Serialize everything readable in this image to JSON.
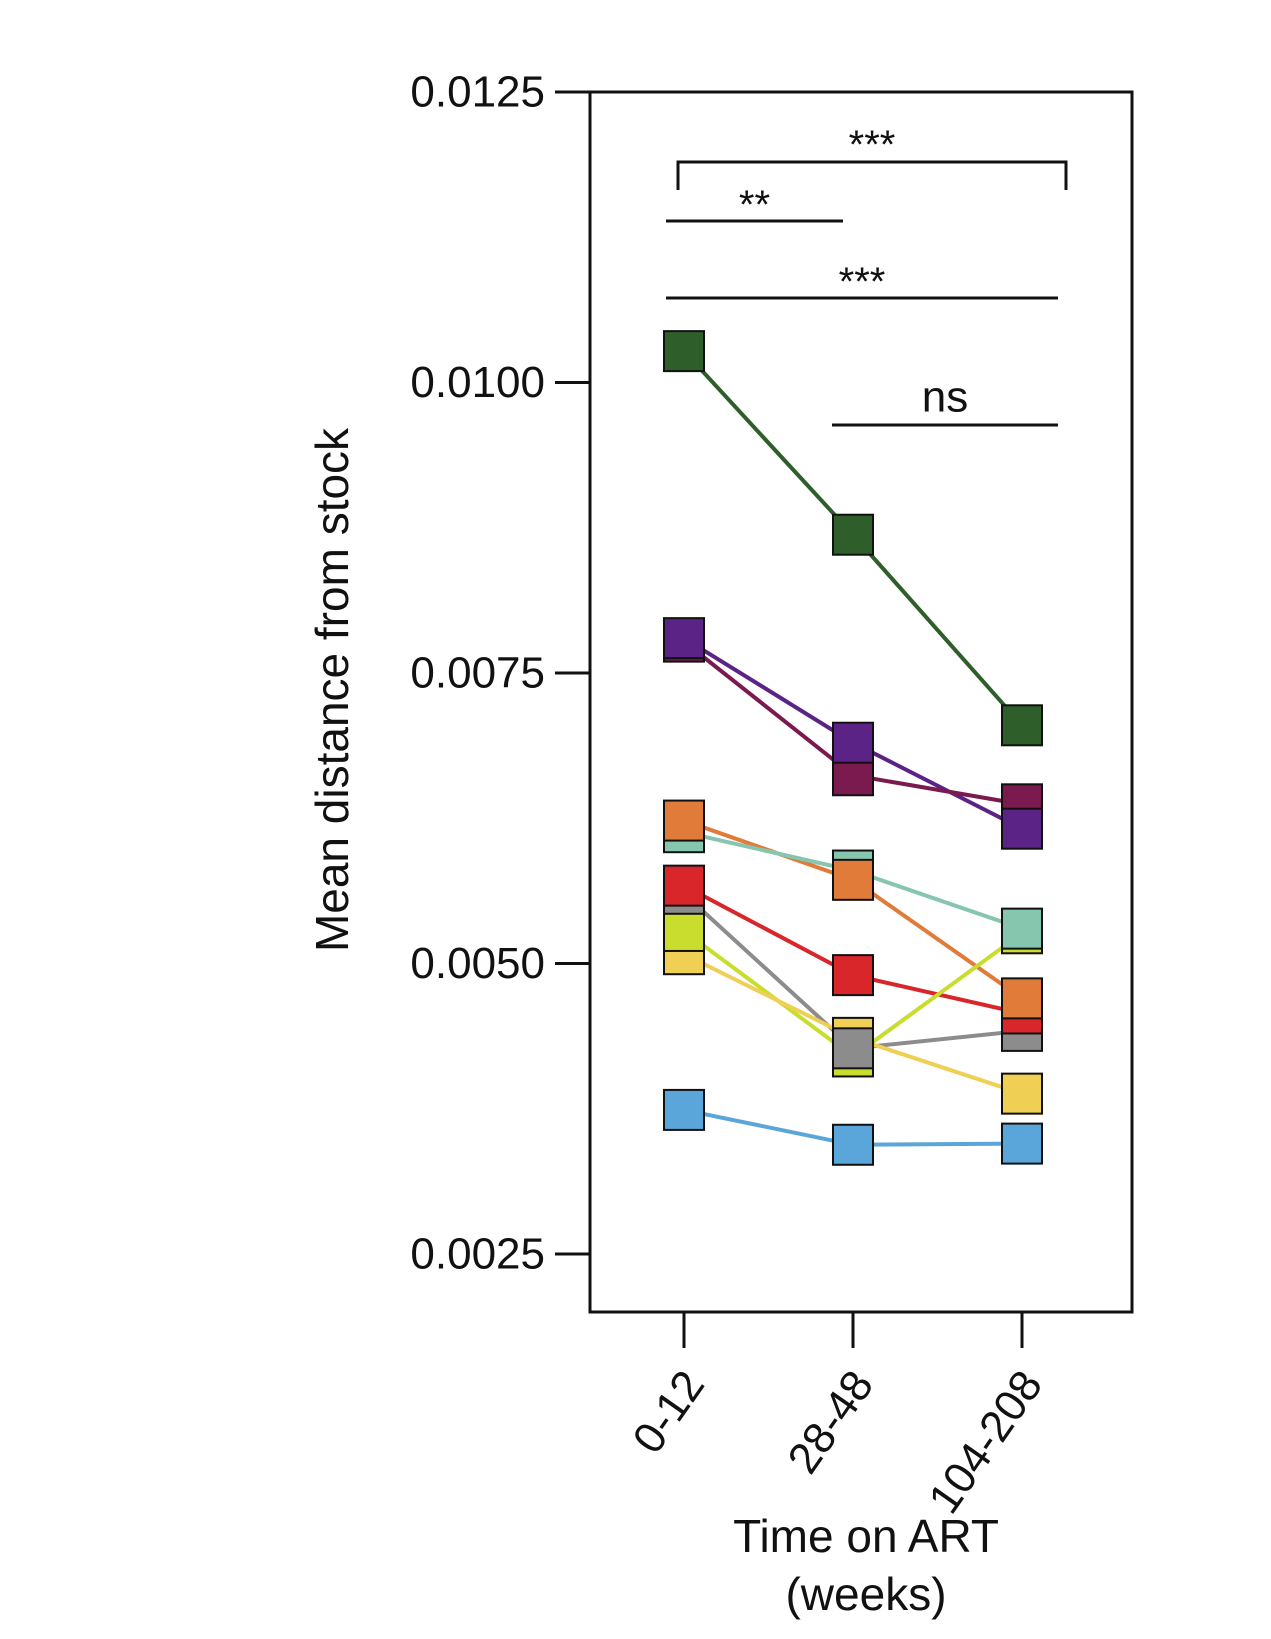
{
  "chart_data": {
    "type": "line",
    "ylabel": "Mean distance from stock",
    "xlabel_lines": [
      "Time on ART",
      "(weeks)"
    ],
    "categories": [
      "0-12",
      "28-48",
      "104-208"
    ],
    "ylim": [
      0.0025,
      0.0125
    ],
    "yticks": [
      "0.0025",
      "0.0050",
      "0.0075",
      "0.0100",
      "0.0125"
    ],
    "ytick_values": [
      0.0025,
      0.005,
      0.0075,
      0.01,
      0.0125
    ],
    "grid": false,
    "legend": "none",
    "series": [
      {
        "color": "#2e5e2a",
        "values": [
          0.01027,
          0.00869,
          0.00705
        ]
      },
      {
        "color": "#5a2385",
        "values": [
          0.0078,
          0.0069,
          0.00616
        ]
      },
      {
        "color": "#7a1a4f",
        "values": [
          0.00777,
          0.00662,
          0.00637
        ]
      },
      {
        "color": "#e07b3a",
        "values": [
          0.00623,
          0.00572,
          0.0047
        ]
      },
      {
        "color": "#86c6ae",
        "values": [
          0.00613,
          0.0058,
          0.0053
        ]
      },
      {
        "color": "#d8262b",
        "values": [
          0.00567,
          0.0049,
          0.00457
        ]
      },
      {
        "color": "#8c8c8c",
        "values": [
          0.0056,
          0.00427,
          0.00442
        ]
      },
      {
        "color": "#c8dd2e",
        "values": [
          0.00528,
          0.0042,
          0.00526
        ]
      },
      {
        "color": "#f0cf55",
        "values": [
          0.00508,
          0.00436,
          0.00388
        ]
      },
      {
        "color": "#5aa5d9",
        "values": [
          0.00374,
          0.00344,
          0.00345
        ]
      }
    ],
    "annotations": [
      {
        "text": "***",
        "from": "0-12",
        "to": "104-208",
        "kind": "bracket"
      },
      {
        "text": "**",
        "from": "0-12",
        "to": "28-48",
        "kind": "line"
      },
      {
        "text": "***",
        "from": "0-12",
        "to": "104-208",
        "kind": "line"
      },
      {
        "text": "ns",
        "from": "28-48",
        "to": "104-208",
        "kind": "line"
      }
    ]
  }
}
